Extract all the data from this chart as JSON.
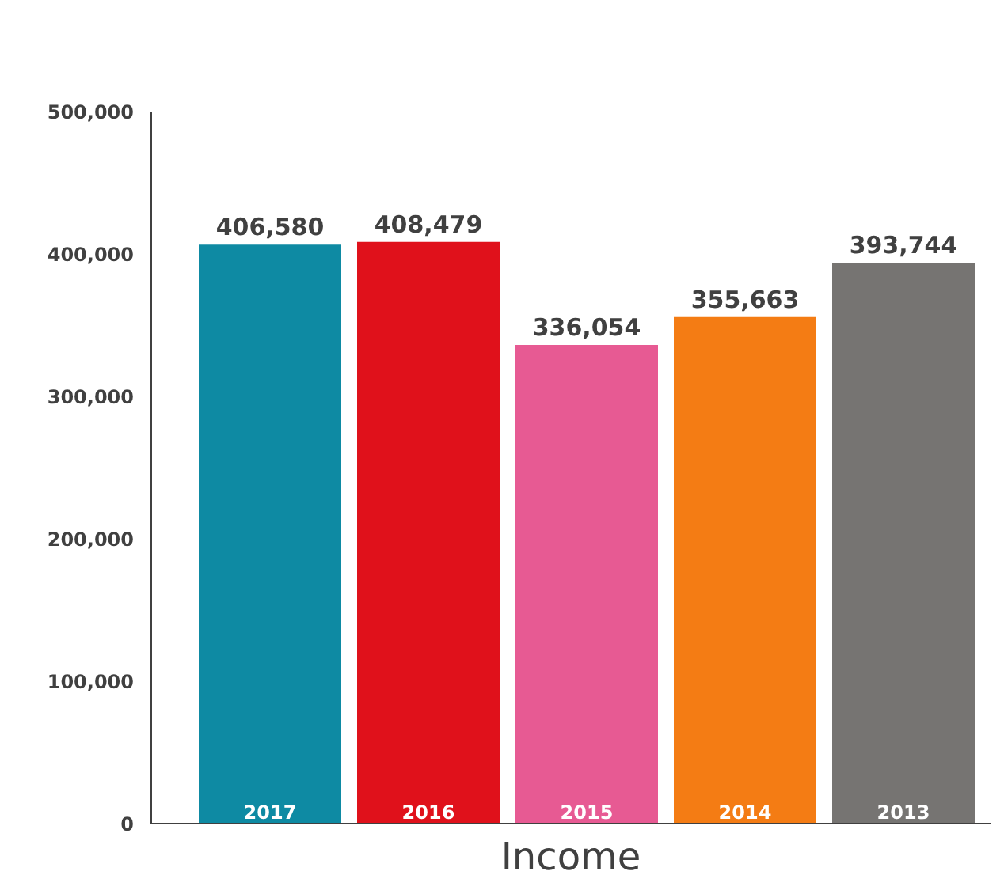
{
  "chart_data": {
    "type": "bar",
    "title": "Income",
    "categories": [
      "2017",
      "2016",
      "2015",
      "2014",
      "2013"
    ],
    "values": [
      406580,
      408479,
      336054,
      355663,
      393744
    ],
    "colors": [
      "#0e8aa3",
      "#e0111b",
      "#e75a93",
      "#f47c14",
      "#767472"
    ],
    "ylim": [
      0,
      500000
    ],
    "yticks": [
      {
        "value": 0,
        "label": "0"
      },
      {
        "value": 100000,
        "label": "100,000"
      },
      {
        "value": 200000,
        "label": "200,000"
      },
      {
        "value": 300000,
        "label": "300,000"
      },
      {
        "value": 400000,
        "label": "400,000"
      },
      {
        "value": 500000,
        "label": "500,000"
      }
    ],
    "value_labels": [
      "406,580",
      "408,479",
      "336,054",
      "355,663",
      "393,744"
    ],
    "grid": false
  }
}
